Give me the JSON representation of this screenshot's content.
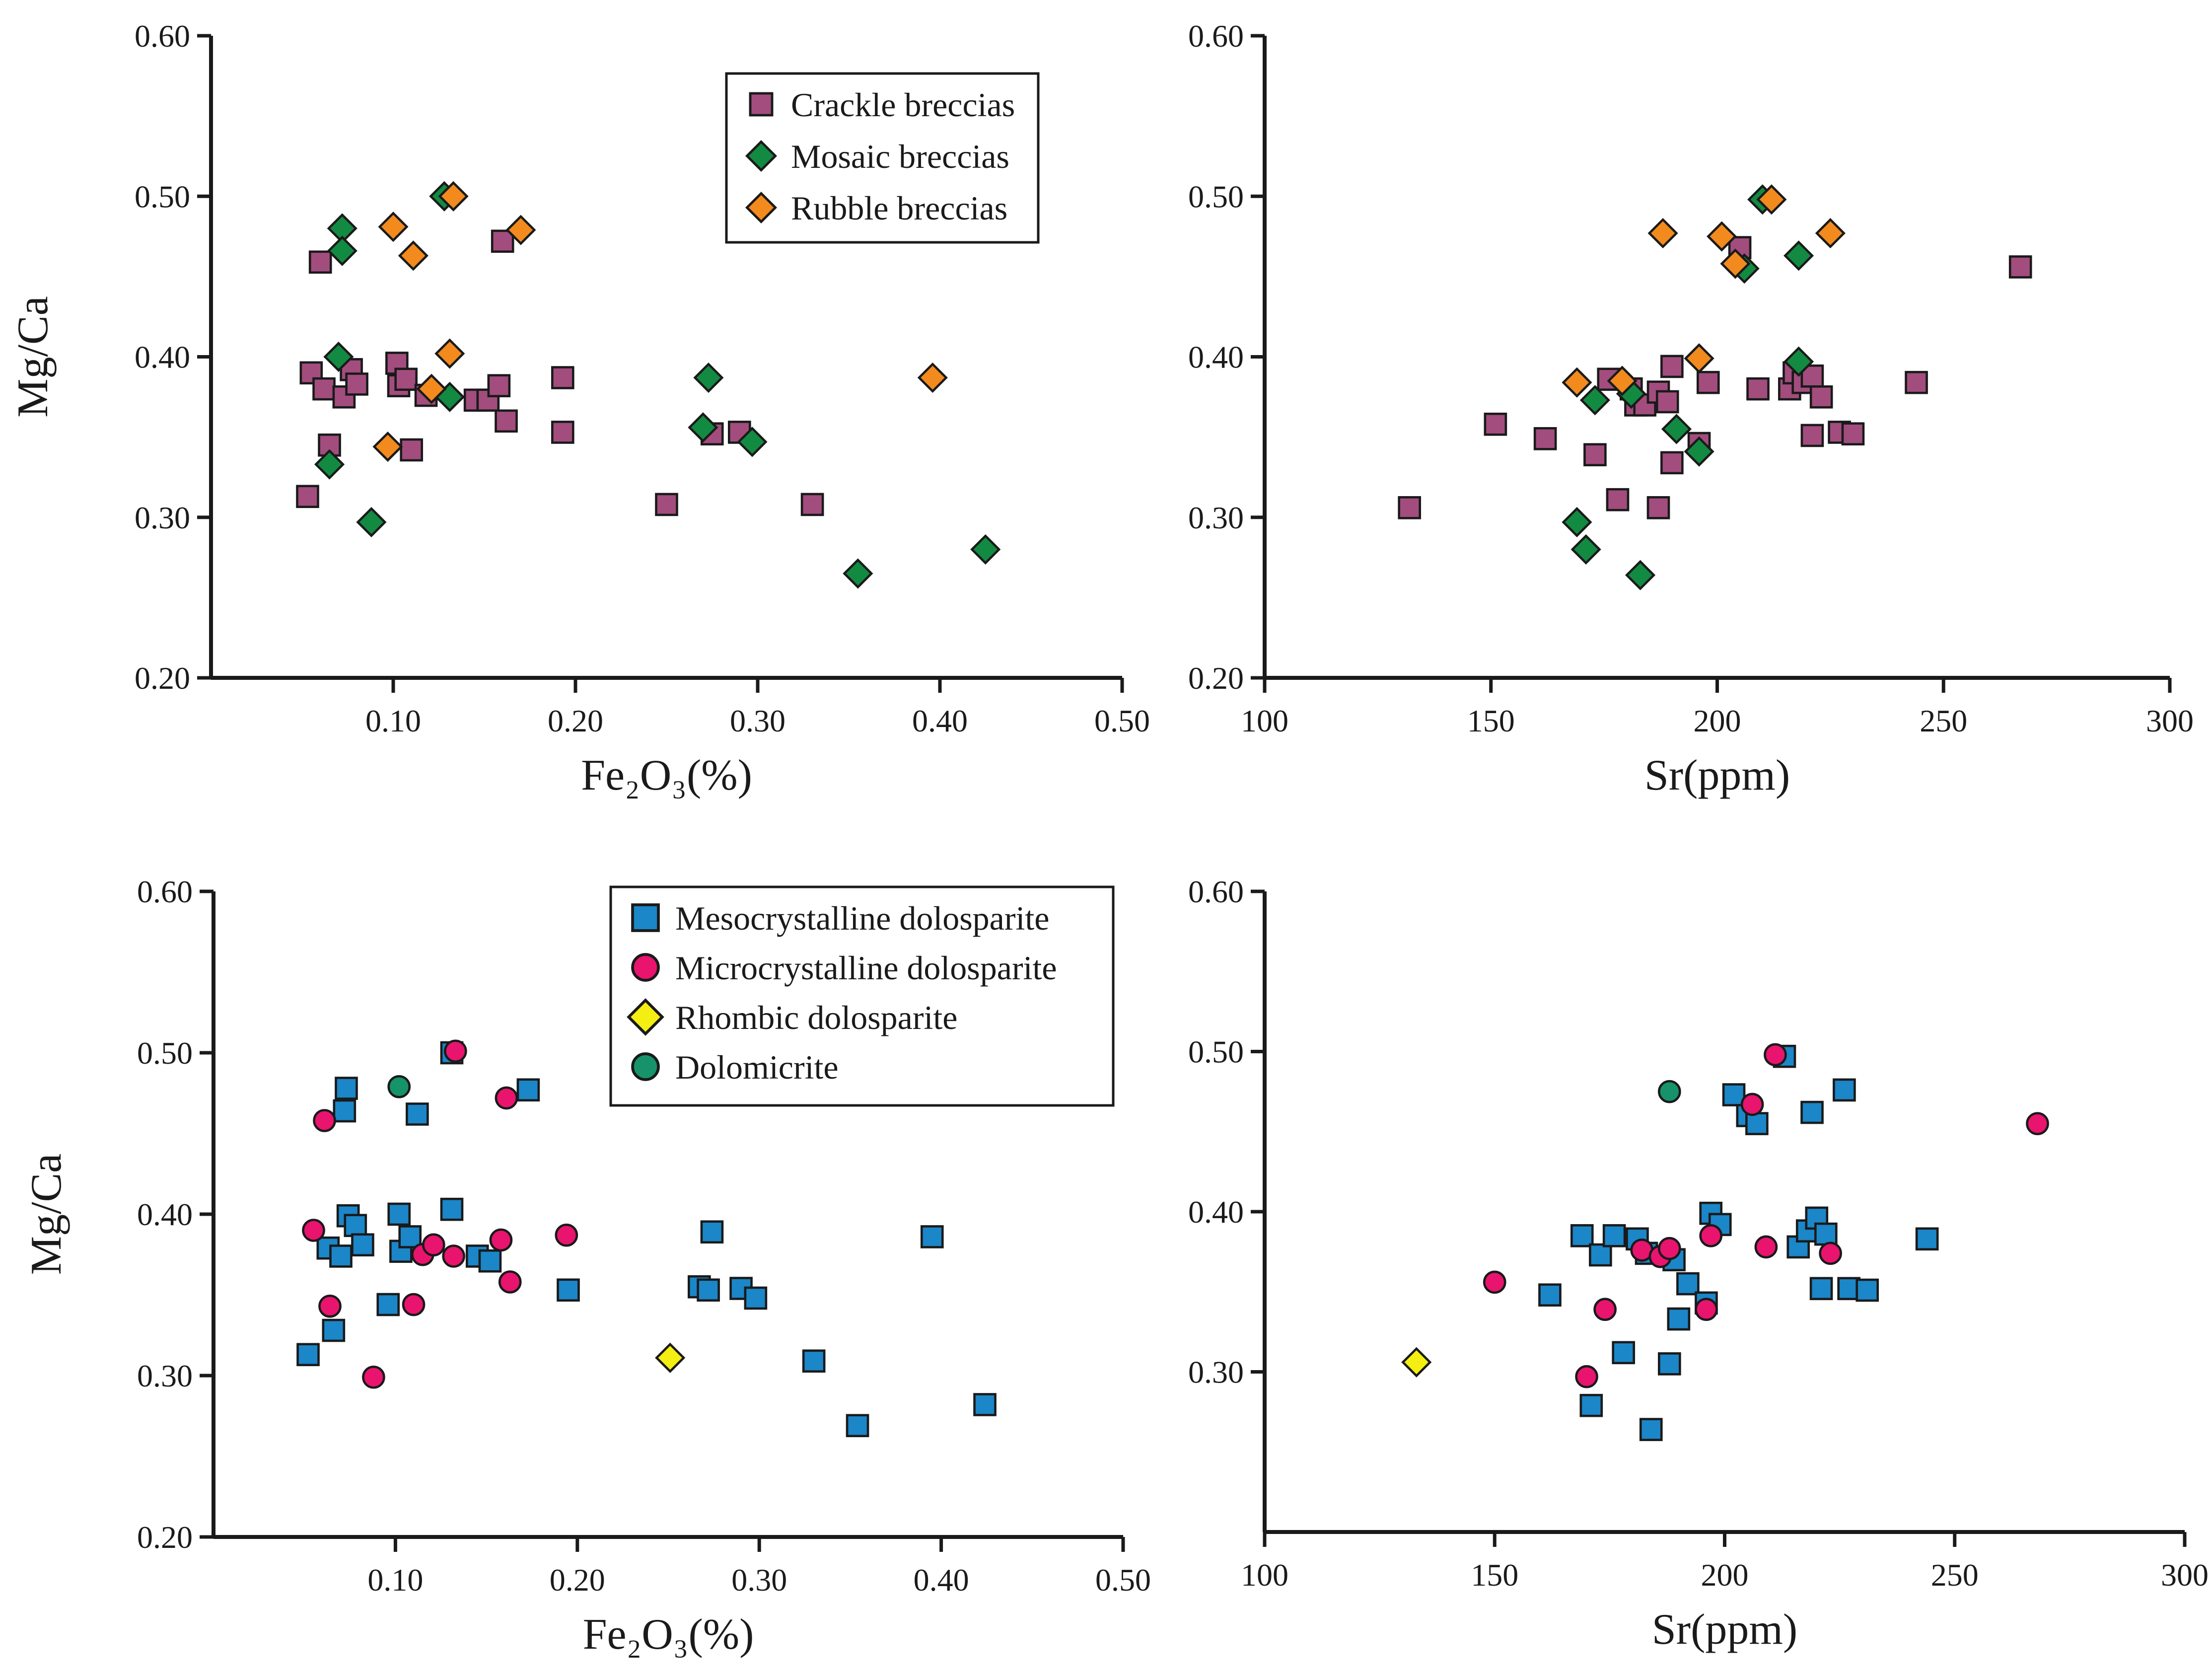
{
  "series_styles": {
    "Crackle breccias": {
      "shape": "square",
      "color": "#a24d7e"
    },
    "Mosaic breccias": {
      "shape": "diamond",
      "color": "#128a41"
    },
    "Rubble breccias": {
      "shape": "diamond",
      "color": "#f28a1e"
    },
    "Mesocrystalline dolosparite": {
      "shape": "square",
      "color": "#1b86c8"
    },
    "Microcrystalline dolosparite": {
      "shape": "circle",
      "color": "#e8146e"
    },
    "Rhombic dolosparite": {
      "shape": "diamond",
      "color": "#f4ee12"
    },
    "Dolomicrite": {
      "shape": "circle",
      "color": "#16936a"
    }
  },
  "chart_data": [
    {
      "id": "breccia-fe2o3",
      "type": "scatter",
      "xlabel": "Fe₂O₃(%)",
      "ylabel": "Mg/Ca",
      "xlim": [
        0,
        0.5
      ],
      "ylim": [
        0.2,
        0.6
      ],
      "xticks": [
        "0.10",
        "0.20",
        "0.30",
        "0.40",
        "0.50"
      ],
      "xtick_values": [
        0.1,
        0.2,
        0.3,
        0.4,
        0.5
      ],
      "yticks": [
        "0.20",
        "0.30",
        "0.40",
        "0.50",
        "0.60"
      ],
      "ytick_values": [
        0.2,
        0.3,
        0.4,
        0.5,
        0.6
      ],
      "legend": [
        "Crackle breccias",
        "Mosaic breccias",
        "Rubble breccias"
      ],
      "legend_position": "top-right",
      "series": [
        {
          "name": "Crackle breccias",
          "points": [
            [
              0.053,
              0.313
            ],
            [
              0.055,
              0.39
            ],
            [
              0.06,
              0.459
            ],
            [
              0.062,
              0.38
            ],
            [
              0.065,
              0.345
            ],
            [
              0.073,
              0.375
            ],
            [
              0.077,
              0.392
            ],
            [
              0.08,
              0.383
            ],
            [
              0.102,
              0.396
            ],
            [
              0.103,
              0.382
            ],
            [
              0.107,
              0.386
            ],
            [
              0.11,
              0.342
            ],
            [
              0.118,
              0.376
            ],
            [
              0.145,
              0.373
            ],
            [
              0.152,
              0.373
            ],
            [
              0.158,
              0.382
            ],
            [
              0.16,
              0.472
            ],
            [
              0.162,
              0.36
            ],
            [
              0.193,
              0.387
            ],
            [
              0.193,
              0.353
            ],
            [
              0.25,
              0.308
            ],
            [
              0.275,
              0.352
            ],
            [
              0.29,
              0.353
            ],
            [
              0.33,
              0.308
            ]
          ]
        },
        {
          "name": "Mosaic breccias",
          "points": [
            [
              0.065,
              0.333
            ],
            [
              0.07,
              0.4
            ],
            [
              0.072,
              0.48
            ],
            [
              0.072,
              0.466
            ],
            [
              0.088,
              0.297
            ],
            [
              0.128,
              0.5
            ],
            [
              0.131,
              0.375
            ],
            [
              0.27,
              0.356
            ],
            [
              0.273,
              0.387
            ],
            [
              0.297,
              0.347
            ],
            [
              0.355,
              0.265
            ],
            [
              0.425,
              0.28
            ]
          ]
        },
        {
          "name": "Rubble breccias",
          "points": [
            [
              0.097,
              0.344
            ],
            [
              0.1,
              0.481
            ],
            [
              0.111,
              0.463
            ],
            [
              0.121,
              0.38
            ],
            [
              0.131,
              0.402
            ],
            [
              0.133,
              0.5
            ],
            [
              0.17,
              0.479
            ],
            [
              0.396,
              0.387
            ]
          ]
        }
      ]
    },
    {
      "id": "breccia-sr",
      "type": "scatter",
      "xlabel": "Sr(ppm)",
      "ylabel": "",
      "xlim": [
        100,
        300
      ],
      "ylim": [
        0.2,
        0.6
      ],
      "xticks": [
        "100",
        "150",
        "200",
        "250",
        "300"
      ],
      "xtick_values": [
        100,
        150,
        200,
        250,
        300
      ],
      "yticks": [
        "0.20",
        "0.30",
        "0.40",
        "0.50",
        "0.60"
      ],
      "ytick_values": [
        0.2,
        0.3,
        0.4,
        0.5,
        0.6
      ],
      "series": [
        {
          "name": "Crackle breccias",
          "points": [
            [
              132,
              0.306
            ],
            [
              151,
              0.358
            ],
            [
              162,
              0.349
            ],
            [
              173,
              0.339
            ],
            [
              176,
              0.386
            ],
            [
              178,
              0.311
            ],
            [
              181,
              0.38
            ],
            [
              182,
              0.37
            ],
            [
              184,
              0.37
            ],
            [
              187,
              0.378
            ],
            [
              187,
              0.306
            ],
            [
              189,
              0.372
            ],
            [
              190,
              0.334
            ],
            [
              190,
              0.394
            ],
            [
              196,
              0.346
            ],
            [
              198,
              0.384
            ],
            [
              205,
              0.468
            ],
            [
              209,
              0.38
            ],
            [
              216,
              0.38
            ],
            [
              217,
              0.39
            ],
            [
              219,
              0.384
            ],
            [
              221,
              0.388
            ],
            [
              221,
              0.351
            ],
            [
              223,
              0.375
            ],
            [
              227,
              0.353
            ],
            [
              230,
              0.352
            ],
            [
              244,
              0.384
            ],
            [
              267,
              0.456
            ]
          ]
        },
        {
          "name": "Mosaic breccias",
          "points": [
            [
              169,
              0.297
            ],
            [
              171,
              0.28
            ],
            [
              173,
              0.373
            ],
            [
              181,
              0.377
            ],
            [
              183,
              0.264
            ],
            [
              191,
              0.355
            ],
            [
              196,
              0.341
            ],
            [
              206,
              0.455
            ],
            [
              210,
              0.498
            ],
            [
              218,
              0.463
            ],
            [
              218,
              0.397
            ]
          ]
        },
        {
          "name": "Rubble breccias",
          "points": [
            [
              169,
              0.384
            ],
            [
              179,
              0.385
            ],
            [
              188,
              0.477
            ],
            [
              196,
              0.399
            ],
            [
              201,
              0.475
            ],
            [
              204,
              0.458
            ],
            [
              212,
              0.498
            ],
            [
              225,
              0.477
            ]
          ]
        }
      ]
    },
    {
      "id": "texture-fe2o3",
      "type": "scatter",
      "xlabel": "Fe₂O₃(%)",
      "ylabel": "Mg/Ca",
      "xlim": [
        0,
        0.5
      ],
      "ylim": [
        0.2,
        0.6
      ],
      "xticks": [
        "0.10",
        "0.20",
        "0.30",
        "0.40",
        "0.50"
      ],
      "xtick_values": [
        0.1,
        0.2,
        0.3,
        0.4,
        0.5
      ],
      "yticks": [
        "0.20",
        "0.30",
        "0.40",
        "0.50",
        "0.60"
      ],
      "ytick_values": [
        0.2,
        0.3,
        0.4,
        0.5,
        0.6
      ],
      "legend": [
        "Mesocrystalline dolosparite",
        "Microcrystalline dolosparite",
        "Rhombic dolosparite",
        "Dolomicrite"
      ],
      "legend_position": "top-right",
      "series": [
        {
          "name": "Mesocrystalline dolosparite",
          "points": [
            [
              0.052,
              0.313
            ],
            [
              0.063,
              0.379
            ],
            [
              0.066,
              0.328
            ],
            [
              0.07,
              0.374
            ],
            [
              0.072,
              0.464
            ],
            [
              0.073,
              0.478
            ],
            [
              0.074,
              0.399
            ],
            [
              0.078,
              0.393
            ],
            [
              0.082,
              0.381
            ],
            [
              0.096,
              0.344
            ],
            [
              0.102,
              0.4
            ],
            [
              0.103,
              0.377
            ],
            [
              0.108,
              0.386
            ],
            [
              0.112,
              0.462
            ],
            [
              0.131,
              0.403
            ],
            [
              0.131,
              0.5
            ],
            [
              0.145,
              0.374
            ],
            [
              0.152,
              0.371
            ],
            [
              0.173,
              0.477
            ],
            [
              0.195,
              0.353
            ],
            [
              0.267,
              0.355
            ],
            [
              0.272,
              0.353
            ],
            [
              0.274,
              0.389
            ],
            [
              0.29,
              0.354
            ],
            [
              0.298,
              0.348
            ],
            [
              0.33,
              0.309
            ],
            [
              0.354,
              0.269
            ],
            [
              0.395,
              0.386
            ],
            [
              0.424,
              0.282
            ]
          ]
        },
        {
          "name": "Microcrystalline dolosparite",
          "points": [
            [
              0.055,
              0.39
            ],
            [
              0.061,
              0.458
            ],
            [
              0.064,
              0.343
            ],
            [
              0.088,
              0.299
            ],
            [
              0.11,
              0.344
            ],
            [
              0.115,
              0.375
            ],
            [
              0.121,
              0.381
            ],
            [
              0.132,
              0.374
            ],
            [
              0.133,
              0.501
            ],
            [
              0.158,
              0.384
            ],
            [
              0.161,
              0.472
            ],
            [
              0.163,
              0.358
            ],
            [
              0.194,
              0.387
            ]
          ]
        },
        {
          "name": "Rhombic dolosparite",
          "points": [
            [
              0.251,
              0.311
            ]
          ]
        },
        {
          "name": "Dolomicrite",
          "points": [
            [
              0.102,
              0.479
            ]
          ]
        }
      ]
    },
    {
      "id": "texture-sr",
      "type": "scatter",
      "xlabel": "Sr(ppm)",
      "ylabel": "",
      "xlim": [
        100,
        300
      ],
      "ylim": [
        0.2,
        0.6
      ],
      "xticks": [
        "100",
        "150",
        "200",
        "250",
        "300"
      ],
      "xtick_values": [
        100,
        150,
        200,
        250,
        300
      ],
      "yticks": [
        "0.30",
        "0.40",
        "0.50",
        "0.60"
      ],
      "ytick_values": [
        0.3,
        0.4,
        0.5,
        0.6
      ],
      "series": [
        {
          "name": "Mesocrystalline dolosparite",
          "points": [
            [
              162,
              0.348
            ],
            [
              169,
              0.385
            ],
            [
              171,
              0.279
            ],
            [
              173,
              0.373
            ],
            [
              176,
              0.385
            ],
            [
              178,
              0.312
            ],
            [
              181,
              0.383
            ],
            [
              183,
              0.374
            ],
            [
              184,
              0.264
            ],
            [
              188,
              0.305
            ],
            [
              189,
              0.37
            ],
            [
              190,
              0.333
            ],
            [
              192,
              0.355
            ],
            [
              196,
              0.343
            ],
            [
              197,
              0.399
            ],
            [
              199,
              0.392
            ],
            [
              202,
              0.473
            ],
            [
              205,
              0.46
            ],
            [
              207,
              0.455
            ],
            [
              213,
              0.497
            ],
            [
              216,
              0.378
            ],
            [
              218,
              0.388
            ],
            [
              219,
              0.462
            ],
            [
              220,
              0.396
            ],
            [
              221,
              0.352
            ],
            [
              222,
              0.386
            ],
            [
              226,
              0.476
            ],
            [
              227,
              0.352
            ],
            [
              231,
              0.351
            ],
            [
              244,
              0.383
            ]
          ]
        },
        {
          "name": "Microcrystalline dolosparite",
          "points": [
            [
              150,
              0.356
            ],
            [
              170,
              0.297
            ],
            [
              174,
              0.339
            ],
            [
              182,
              0.376
            ],
            [
              186,
              0.372
            ],
            [
              188,
              0.377
            ],
            [
              196,
              0.339
            ],
            [
              197,
              0.385
            ],
            [
              206,
              0.467
            ],
            [
              209,
              0.378
            ],
            [
              211,
              0.498
            ],
            [
              223,
              0.374
            ],
            [
              268,
              0.455
            ]
          ]
        },
        {
          "name": "Rhombic dolosparite",
          "points": [
            [
              133,
              0.306
            ]
          ]
        },
        {
          "name": "Dolomicrite",
          "points": [
            [
              188,
              0.475
            ]
          ]
        }
      ]
    }
  ]
}
